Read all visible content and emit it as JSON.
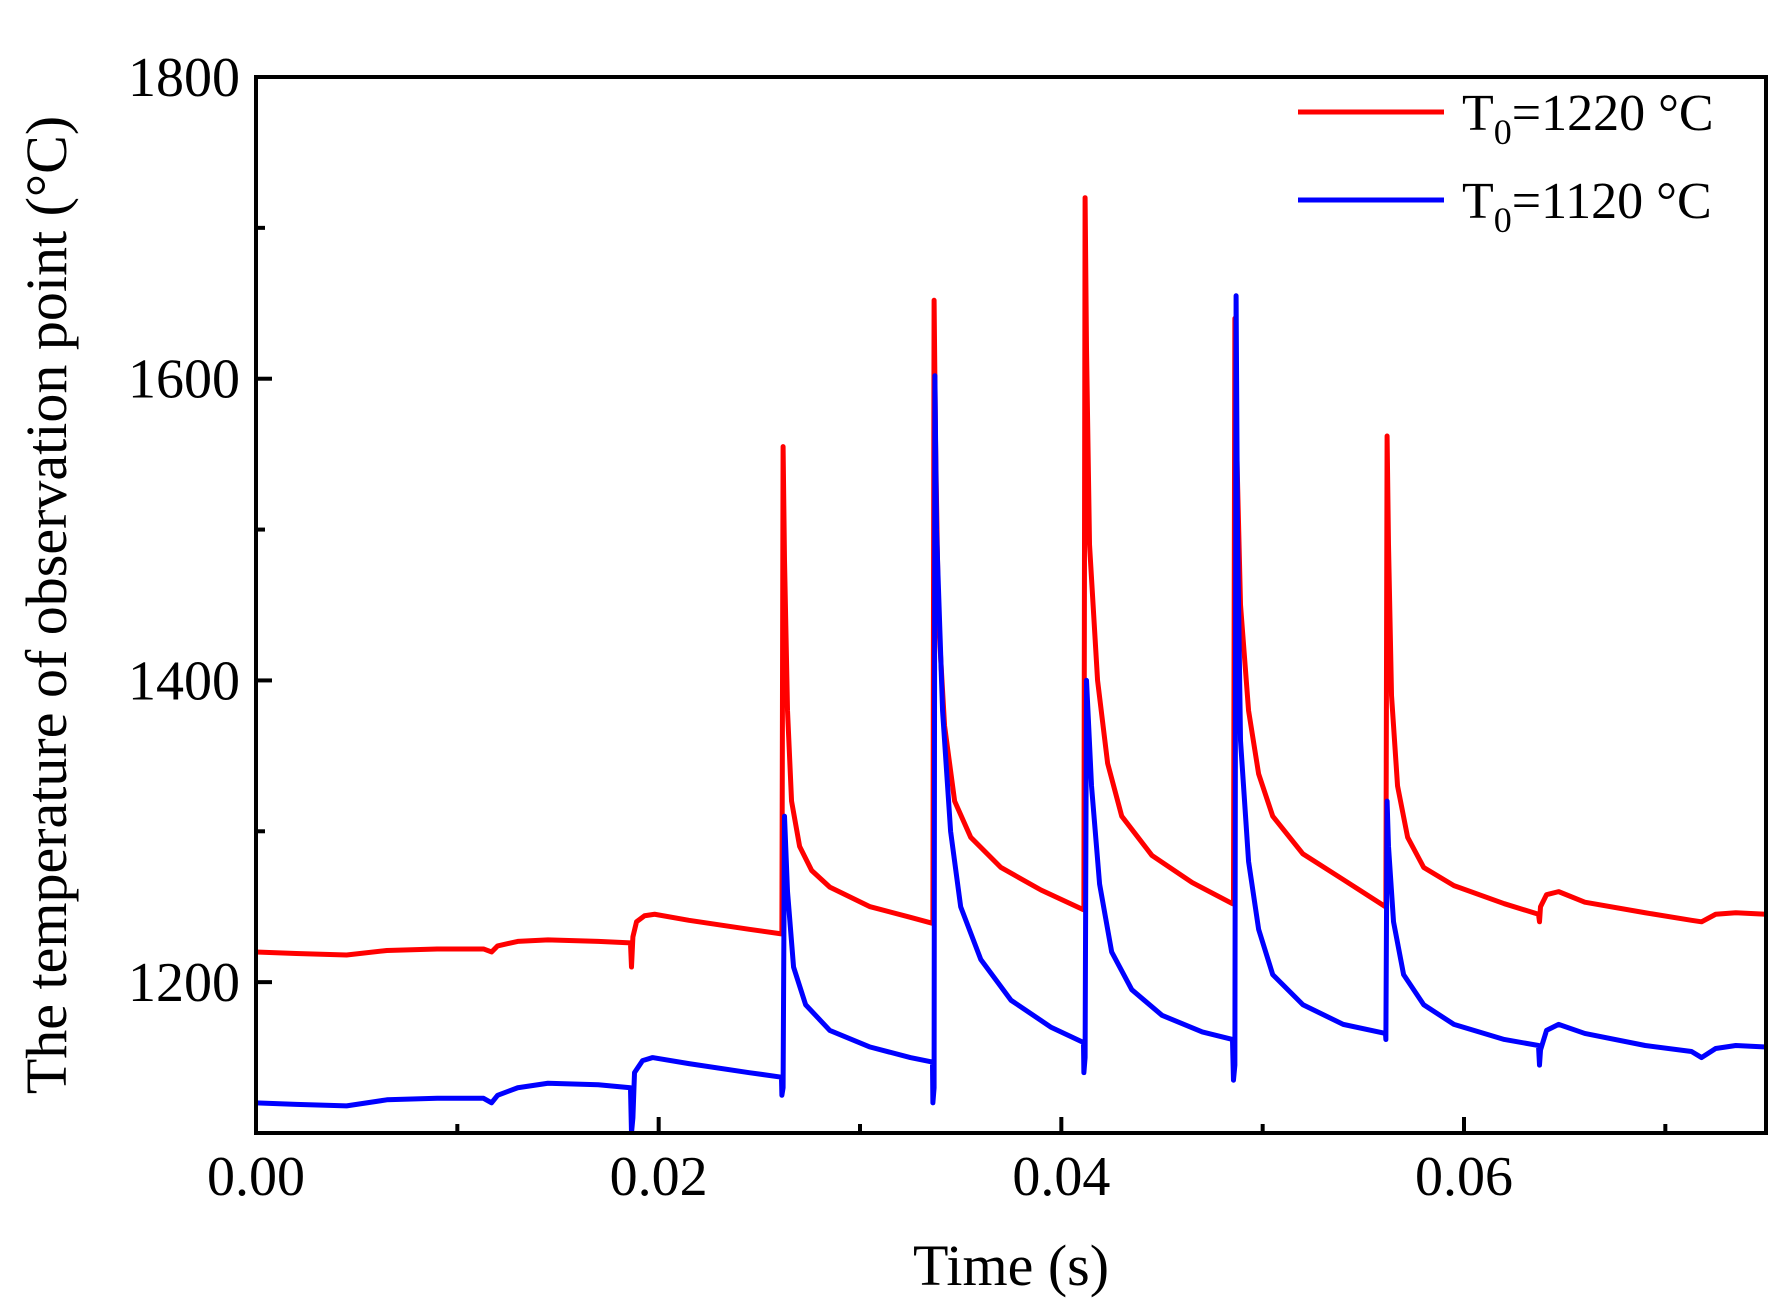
{
  "chart_data": {
    "type": "line",
    "title": "",
    "xlabel": "Time (s)",
    "ylabel": "The temperature of observation point (°C)",
    "xlim": [
      0,
      0.075
    ],
    "ylim": [
      1100,
      1800
    ],
    "x_ticks": [
      0,
      0.02,
      0.04,
      0.06
    ],
    "x_tick_labels": [
      "0.00",
      "0.02",
      "0.04",
      "0.06"
    ],
    "x_minor_ticks": [
      0.01,
      0.03,
      0.05,
      0.07
    ],
    "y_ticks": [
      1200,
      1400,
      1600,
      1800
    ],
    "y_tick_labels": [
      "1200",
      "1400",
      "1600",
      "1800"
    ],
    "y_minor_ticks": [
      1100,
      1300,
      1500,
      1700
    ],
    "legend": {
      "position": "top-right"
    },
    "series": [
      {
        "name": "T0=1220 °C",
        "legend_main": "T",
        "legend_sub": "0",
        "legend_rest": "=1220 °C",
        "color": "#ff0000",
        "points": [
          [
            0.0,
            1220
          ],
          [
            0.002,
            1219
          ],
          [
            0.0045,
            1218
          ],
          [
            0.0065,
            1221
          ],
          [
            0.009,
            1222
          ],
          [
            0.0113,
            1222
          ],
          [
            0.0117,
            1220
          ],
          [
            0.012,
            1224
          ],
          [
            0.013,
            1227
          ],
          [
            0.0145,
            1228
          ],
          [
            0.017,
            1227
          ],
          [
            0.0186,
            1226
          ],
          [
            0.01865,
            1210
          ],
          [
            0.01872,
            1230
          ],
          [
            0.0189,
            1240
          ],
          [
            0.0193,
            1244
          ],
          [
            0.0198,
            1245
          ],
          [
            0.0215,
            1241
          ],
          [
            0.0245,
            1235
          ],
          [
            0.0261,
            1232
          ],
          [
            0.02612,
            1232
          ],
          [
            0.02618,
            1555
          ],
          [
            0.02625,
            1480
          ],
          [
            0.0264,
            1380
          ],
          [
            0.0266,
            1320
          ],
          [
            0.027,
            1290
          ],
          [
            0.0276,
            1274
          ],
          [
            0.0285,
            1263
          ],
          [
            0.0305,
            1250
          ],
          [
            0.0325,
            1243
          ],
          [
            0.0336,
            1239
          ],
          [
            0.03362,
            1239
          ],
          [
            0.03368,
            1652
          ],
          [
            0.03375,
            1560
          ],
          [
            0.0339,
            1440
          ],
          [
            0.0342,
            1370
          ],
          [
            0.0347,
            1320
          ],
          [
            0.0355,
            1296
          ],
          [
            0.037,
            1276
          ],
          [
            0.039,
            1261
          ],
          [
            0.0411,
            1248
          ],
          [
            0.04112,
            1248
          ],
          [
            0.04118,
            1720
          ],
          [
            0.04125,
            1620
          ],
          [
            0.0414,
            1490
          ],
          [
            0.0418,
            1400
          ],
          [
            0.0423,
            1345
          ],
          [
            0.043,
            1310
          ],
          [
            0.0445,
            1284
          ],
          [
            0.0465,
            1266
          ],
          [
            0.0485,
            1252
          ],
          [
            0.04855,
            1252
          ],
          [
            0.04862,
            1640
          ],
          [
            0.0487,
            1560
          ],
          [
            0.0489,
            1450
          ],
          [
            0.0493,
            1380
          ],
          [
            0.0498,
            1338
          ],
          [
            0.0505,
            1310
          ],
          [
            0.052,
            1285
          ],
          [
            0.054,
            1268
          ],
          [
            0.0561,
            1250
          ],
          [
            0.05612,
            1250
          ],
          [
            0.05618,
            1562
          ],
          [
            0.05625,
            1490
          ],
          [
            0.0564,
            1390
          ],
          [
            0.0567,
            1330
          ],
          [
            0.0572,
            1296
          ],
          [
            0.058,
            1276
          ],
          [
            0.0595,
            1264
          ],
          [
            0.062,
            1252
          ],
          [
            0.0637,
            1245
          ],
          [
            0.06375,
            1240
          ],
          [
            0.0638,
            1250
          ],
          [
            0.0641,
            1258
          ],
          [
            0.0647,
            1260
          ],
          [
            0.066,
            1253
          ],
          [
            0.069,
            1246
          ],
          [
            0.0713,
            1241
          ],
          [
            0.0718,
            1240
          ],
          [
            0.0725,
            1245
          ],
          [
            0.0735,
            1246
          ],
          [
            0.075,
            1245
          ]
        ]
      },
      {
        "name": "T0=1120 °C",
        "legend_main": "T",
        "legend_sub": "0",
        "legend_rest": "=1120 °C",
        "color": "#0000ff",
        "points": [
          [
            0.0,
            1120
          ],
          [
            0.002,
            1119
          ],
          [
            0.0045,
            1118
          ],
          [
            0.0065,
            1122
          ],
          [
            0.009,
            1123
          ],
          [
            0.0113,
            1123
          ],
          [
            0.0117,
            1120
          ],
          [
            0.012,
            1125
          ],
          [
            0.013,
            1130
          ],
          [
            0.0145,
            1133
          ],
          [
            0.017,
            1132
          ],
          [
            0.0186,
            1130
          ],
          [
            0.01865,
            1100
          ],
          [
            0.01872,
            1110
          ],
          [
            0.0188,
            1140
          ],
          [
            0.0192,
            1148
          ],
          [
            0.0197,
            1150
          ],
          [
            0.0215,
            1146
          ],
          [
            0.0245,
            1140
          ],
          [
            0.0261,
            1137
          ],
          [
            0.02612,
            1125
          ],
          [
            0.02618,
            1130
          ],
          [
            0.02625,
            1310
          ],
          [
            0.0264,
            1260
          ],
          [
            0.0267,
            1210
          ],
          [
            0.0273,
            1185
          ],
          [
            0.0285,
            1168
          ],
          [
            0.0305,
            1157
          ],
          [
            0.0325,
            1150
          ],
          [
            0.0336,
            1147
          ],
          [
            0.03362,
            1120
          ],
          [
            0.03368,
            1130
          ],
          [
            0.03372,
            1602
          ],
          [
            0.0338,
            1500
          ],
          [
            0.0341,
            1380
          ],
          [
            0.0345,
            1300
          ],
          [
            0.035,
            1250
          ],
          [
            0.036,
            1215
          ],
          [
            0.0375,
            1188
          ],
          [
            0.0395,
            1170
          ],
          [
            0.0411,
            1160
          ],
          [
            0.04112,
            1140
          ],
          [
            0.04118,
            1150
          ],
          [
            0.04125,
            1400
          ],
          [
            0.0415,
            1330
          ],
          [
            0.0419,
            1265
          ],
          [
            0.0425,
            1220
          ],
          [
            0.0435,
            1195
          ],
          [
            0.045,
            1178
          ],
          [
            0.047,
            1167
          ],
          [
            0.0485,
            1162
          ],
          [
            0.04855,
            1135
          ],
          [
            0.04862,
            1145
          ],
          [
            0.04868,
            1655
          ],
          [
            0.04875,
            1500
          ],
          [
            0.0489,
            1360
          ],
          [
            0.0493,
            1280
          ],
          [
            0.0498,
            1235
          ],
          [
            0.0505,
            1205
          ],
          [
            0.052,
            1185
          ],
          [
            0.054,
            1172
          ],
          [
            0.0561,
            1166
          ],
          [
            0.05612,
            1162
          ],
          [
            0.05618,
            1320
          ],
          [
            0.05625,
            1290
          ],
          [
            0.0565,
            1240
          ],
          [
            0.057,
            1205
          ],
          [
            0.058,
            1185
          ],
          [
            0.0595,
            1172
          ],
          [
            0.062,
            1162
          ],
          [
            0.0637,
            1158
          ],
          [
            0.06375,
            1145
          ],
          [
            0.0638,
            1155
          ],
          [
            0.0641,
            1168
          ],
          [
            0.0647,
            1172
          ],
          [
            0.066,
            1166
          ],
          [
            0.069,
            1158
          ],
          [
            0.0713,
            1154
          ],
          [
            0.0718,
            1150
          ],
          [
            0.0725,
            1156
          ],
          [
            0.0735,
            1158
          ],
          [
            0.075,
            1157
          ]
        ]
      }
    ]
  }
}
